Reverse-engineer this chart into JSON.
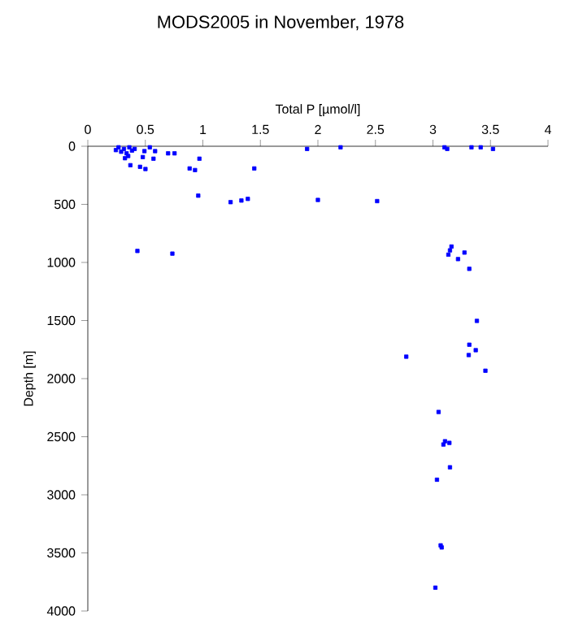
{
  "chart_data": {
    "type": "scatter",
    "title": "MODS2005 in November, 1978",
    "xlabel": "Total P [µmol/l]",
    "ylabel": "Depth [m]",
    "xlim": [
      0,
      4
    ],
    "xticks": [
      0,
      0.5,
      1,
      1.5,
      2,
      2.5,
      3,
      3.5,
      4
    ],
    "ylim": [
      4000,
      0
    ],
    "yticks": [
      0,
      500,
      1000,
      1500,
      2000,
      2500,
      3000,
      3500,
      4000
    ],
    "marker": "square",
    "grid": false,
    "series": [
      {
        "color": "#0000ff",
        "x": [
          0.244,
          0.267,
          0.29,
          0.314,
          0.337,
          0.361,
          0.384,
          0.407,
          0.323,
          0.351,
          0.37,
          0.454,
          0.501,
          0.478,
          0.492,
          0.539,
          0.585,
          0.571,
          0.698,
          0.754,
          0.885,
          0.932,
          0.97,
          1.447,
          1.906,
          2.197,
          3.1,
          3.124,
          3.335,
          3.415,
          3.522,
          0.96,
          1.241,
          1.335,
          1.391,
          2.0,
          2.515,
          0.431,
          0.735,
          3.161,
          3.148,
          3.134,
          3.274,
          3.218,
          3.316,
          3.382,
          3.316,
          3.372,
          3.311,
          2.768,
          3.456,
          3.049,
          3.105,
          3.091,
          3.143,
          3.148,
          3.035,
          3.067,
          3.076,
          3.021
        ],
        "values": [
          33,
          9,
          47,
          23,
          61,
          9,
          37,
          23,
          103,
          84,
          163,
          177,
          196,
          93,
          42,
          9,
          42,
          107,
          61,
          61,
          191,
          205,
          107,
          191,
          23,
          9,
          9,
          23,
          9,
          9,
          23,
          425,
          481,
          467,
          453,
          462,
          472,
          901,
          924,
          863,
          896,
          933,
          915,
          971,
          1055,
          1503,
          1708,
          1755,
          1797,
          1811,
          1932,
          2287,
          2539,
          2567,
          2553,
          2763,
          2870,
          3435,
          3453,
          3799
        ]
      }
    ]
  }
}
